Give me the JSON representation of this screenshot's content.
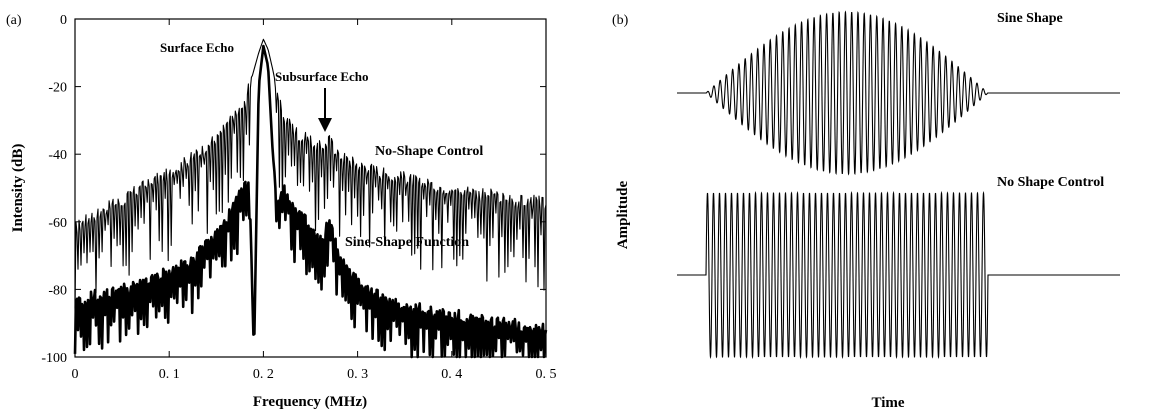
{
  "chart_data": [
    {
      "panel_label": "(a)",
      "type": "line",
      "xlabel": "Frequency (MHz)",
      "ylabel": "Intensity (dB)",
      "xlim": [
        0,
        0.5
      ],
      "ylim": [
        -100,
        0
      ],
      "x_ticks": [
        0,
        0.1,
        0.2,
        0.3,
        0.4,
        0.5
      ],
      "x_tick_labels": [
        "0",
        "0. 1",
        "0. 2",
        "0. 3",
        "0. 4",
        "0. 5"
      ],
      "y_ticks": [
        0,
        -20,
        -40,
        -60,
        -80,
        -100
      ],
      "y_tick_labels": [
        "0",
        "-20",
        "-40",
        "-60",
        "-80",
        "-100"
      ],
      "grid": false,
      "annotations": [
        {
          "text": "Surface Echo",
          "x": 0.2,
          "y": -6
        },
        {
          "text": "Subsurface Echo",
          "x": 0.27,
          "y": -28,
          "arrow": true
        }
      ],
      "series": [
        {
          "name": "No-Shape Control",
          "x": [
            0.0,
            0.01,
            0.02,
            0.03,
            0.04,
            0.05,
            0.06,
            0.07,
            0.08,
            0.09,
            0.1,
            0.11,
            0.12,
            0.13,
            0.14,
            0.15,
            0.16,
            0.17,
            0.18,
            0.185,
            0.19,
            0.195,
            0.2,
            0.205,
            0.21,
            0.215,
            0.22,
            0.23,
            0.24,
            0.25,
            0.26,
            0.27,
            0.28,
            0.29,
            0.3,
            0.31,
            0.32,
            0.33,
            0.34,
            0.35,
            0.36,
            0.37,
            0.38,
            0.39,
            0.4,
            0.41,
            0.42,
            0.43,
            0.44,
            0.45,
            0.46,
            0.47,
            0.48,
            0.49,
            0.5
          ],
          "y": [
            -62,
            -60,
            -58,
            -57,
            -55,
            -54,
            -52,
            -50,
            -49,
            -47,
            -46,
            -44,
            -42,
            -40,
            -38,
            -35,
            -32,
            -29,
            -25,
            -20,
            -15,
            -10,
            -6,
            -9,
            -15,
            -22,
            -28,
            -32,
            -35,
            -36,
            -38,
            -36,
            -40,
            -42,
            -43,
            -44,
            -45,
            -46,
            -47,
            -47,
            -48,
            -49,
            -49,
            -50,
            -50,
            -51,
            -51,
            -52,
            -52,
            -53,
            -53,
            -54,
            -54,
            -54,
            -55
          ]
        },
        {
          "name": "Sine-Shape Function",
          "x": [
            0.0,
            0.01,
            0.02,
            0.03,
            0.04,
            0.05,
            0.06,
            0.07,
            0.08,
            0.09,
            0.1,
            0.11,
            0.12,
            0.13,
            0.14,
            0.15,
            0.16,
            0.17,
            0.18,
            0.185,
            0.19,
            0.195,
            0.2,
            0.205,
            0.21,
            0.215,
            0.22,
            0.23,
            0.24,
            0.25,
            0.26,
            0.27,
            0.28,
            0.29,
            0.3,
            0.31,
            0.32,
            0.33,
            0.34,
            0.35,
            0.36,
            0.37,
            0.38,
            0.39,
            0.4,
            0.41,
            0.42,
            0.43,
            0.44,
            0.45,
            0.46,
            0.47,
            0.48,
            0.49,
            0.5
          ],
          "y": [
            -85,
            -83,
            -82,
            -82,
            -81,
            -80,
            -80,
            -79,
            -78,
            -76,
            -75,
            -74,
            -72,
            -70,
            -67,
            -64,
            -60,
            -55,
            -50,
            -48,
            -100,
            -20,
            -8,
            -14,
            -40,
            -55,
            -50,
            -55,
            -58,
            -62,
            -66,
            -60,
            -70,
            -75,
            -78,
            -80,
            -82,
            -83,
            -84,
            -85,
            -86,
            -86,
            -87,
            -87,
            -88,
            -88,
            -89,
            -89,
            -90,
            -90,
            -90,
            -91,
            -91,
            -91,
            -92
          ]
        }
      ]
    },
    {
      "panel_label": "(b)",
      "type": "line",
      "xlabel": "Time",
      "ylabel": "Amplitude",
      "series": [
        {
          "name": "Sine Shape",
          "cycles": 45,
          "envelope": "sine"
        },
        {
          "name": "No Shape Control",
          "cycles": 47,
          "envelope": "rectangular"
        }
      ]
    }
  ]
}
